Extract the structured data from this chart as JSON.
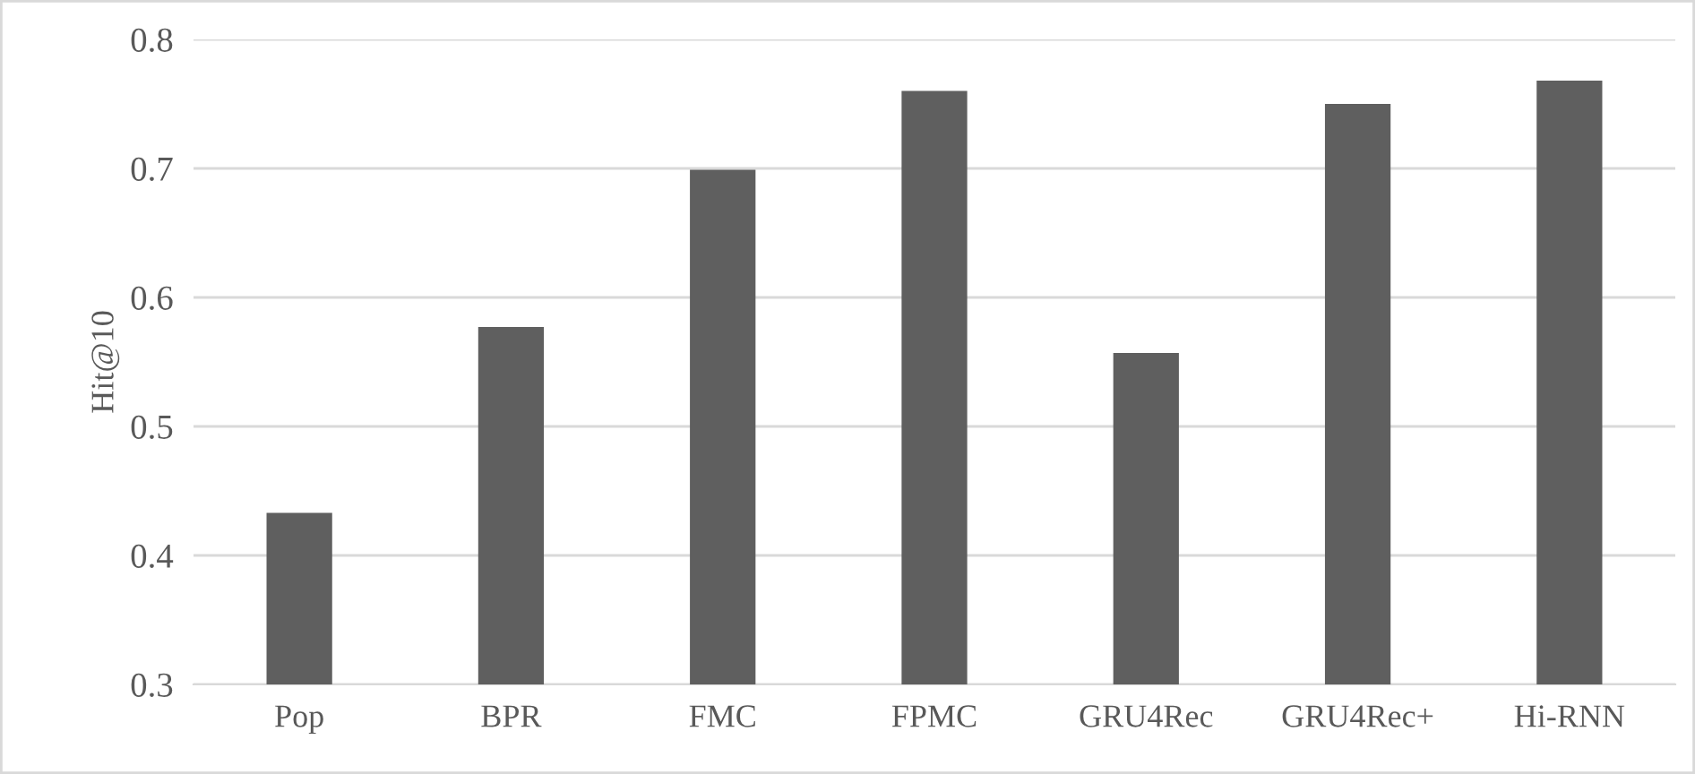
{
  "chart_data": {
    "type": "bar",
    "ylabel": "Hit@10",
    "categories": [
      "Pop",
      "BPR",
      "FMC",
      "FPMC",
      "GRU4Rec",
      "GRU4Rec+",
      "Hi-RNN"
    ],
    "values": [
      0.433,
      0.577,
      0.699,
      0.76,
      0.557,
      0.75,
      0.768
    ],
    "color": "#5f5f5f",
    "ylim": [
      0.3,
      0.8
    ],
    "yticks": [
      0.3,
      0.4,
      0.5,
      0.6,
      0.7,
      0.8
    ],
    "grid": "y",
    "legend": false
  }
}
